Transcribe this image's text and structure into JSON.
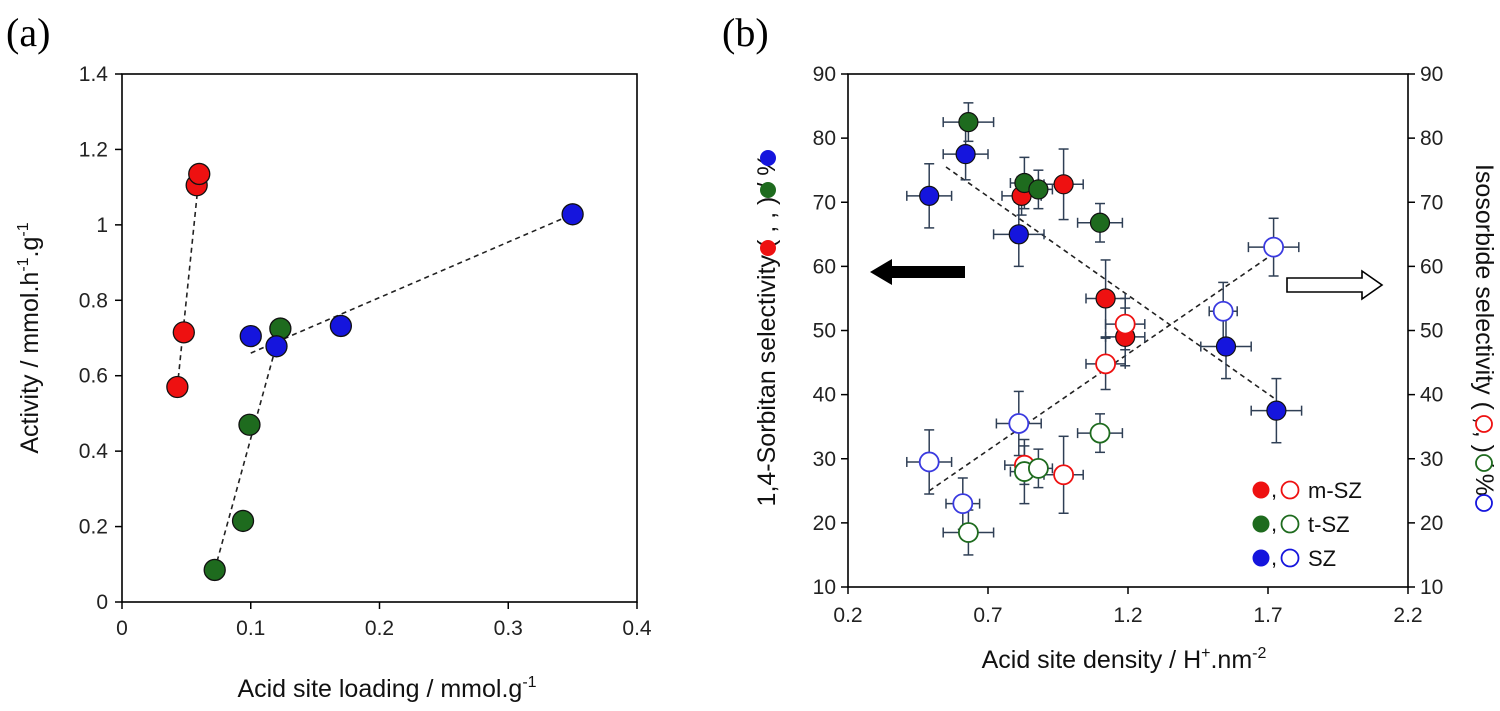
{
  "colors": {
    "m_SZ": "#ee1111",
    "t_SZ": "#1e6b1e",
    "SZ": "#1515dd",
    "SZ_open": "#3a3ae0",
    "error_bar": "#2f3f55",
    "axis": "#000000"
  },
  "chart_data": [
    {
      "panel_label": "(a)",
      "type": "scatter",
      "xlabel": "Acid site loading  / mmol.g",
      "xlabel_sup": "-1",
      "ylabel": {
        "pre": "Activity / mmol.h",
        "sup1": "-1",
        "mid": ".g",
        "sup2": "-1"
      },
      "xlim": [
        0,
        0.4
      ],
      "ylim": [
        0,
        1.4
      ],
      "xticks": [
        "0",
        "0.1",
        "0.2",
        "0.3",
        "0.4"
      ],
      "yticks": [
        "0",
        "0.2",
        "0.4",
        "0.6",
        "0.8",
        "1",
        "1.2",
        "1.4"
      ],
      "series": [
        {
          "name": "m-SZ",
          "color_key": "m_SZ",
          "points": [
            [
              0.043,
              0.57
            ],
            [
              0.048,
              0.715
            ],
            [
              0.058,
              1.105
            ],
            [
              0.06,
              1.135
            ]
          ],
          "trendline": [
            [
              0.043,
              0.57
            ],
            [
              0.06,
              1.135
            ]
          ]
        },
        {
          "name": "t-SZ",
          "color_key": "t_SZ",
          "points": [
            [
              0.072,
              0.085
            ],
            [
              0.094,
              0.215
            ],
            [
              0.099,
              0.47
            ],
            [
              0.123,
              0.725
            ]
          ],
          "trendline": [
            [
              0.072,
              0.085
            ],
            [
              0.123,
              0.72
            ]
          ]
        },
        {
          "name": "SZ",
          "color_key": "SZ",
          "points": [
            [
              0.1,
              0.705
            ],
            [
              0.12,
              0.678
            ],
            [
              0.17,
              0.732
            ],
            [
              0.35,
              1.028
            ]
          ],
          "trendline": [
            [
              0.1,
              0.66
            ],
            [
              0.35,
              1.028
            ]
          ]
        }
      ]
    },
    {
      "panel_label": "(b)",
      "type": "scatter",
      "xlabel": "Acid site density / H",
      "xlabel_sup1": "+",
      "xlabel_mid": ".nm",
      "xlabel_sup2": "-2",
      "ylabel_left": "1,4-Sorbitan selectivity (  ,  ,  ) / %",
      "ylabel_right": "Isosorbide selectivity (  ,  ,  ) / %",
      "xlim": [
        0.2,
        2.2
      ],
      "ylim": [
        10,
        90
      ],
      "xticks": [
        "0.2",
        "0.7",
        "1.2",
        "1.7",
        "2.2"
      ],
      "yticks_left": [
        "10",
        "20",
        "30",
        "40",
        "50",
        "60",
        "70",
        "80",
        "90"
      ],
      "yticks_right": [
        "10",
        "20",
        "30",
        "40",
        "50",
        "60",
        "70",
        "80",
        "90"
      ],
      "legend": [
        {
          "label": "m-SZ",
          "color_key": "m_SZ"
        },
        {
          "label": "t-SZ",
          "color_key": "t_SZ"
        },
        {
          "label": "SZ",
          "color_key": "SZ"
        }
      ],
      "series": [
        {
          "name": "m-SZ 1,4-Sorbitan",
          "axis": "left",
          "filled": true,
          "color_key": "m_SZ",
          "points": [
            [
              0.82,
              71,
              0.07,
              3
            ],
            [
              0.97,
              72.8,
              0.07,
              5.5
            ],
            [
              1.12,
              55,
              0.07,
              6
            ],
            [
              1.19,
              49,
              0.07,
              4.5
            ]
          ]
        },
        {
          "name": "t-SZ 1,4-Sorbitan",
          "axis": "left",
          "filled": true,
          "color_key": "t_SZ",
          "points": [
            [
              0.63,
              82.5,
              0.09,
              3
            ],
            [
              0.83,
              73,
              0.05,
              4
            ],
            [
              0.88,
              72,
              0.05,
              3
            ],
            [
              1.1,
              66.8,
              0.08,
              3
            ]
          ]
        },
        {
          "name": "SZ 1,4-Sorbitan",
          "axis": "left",
          "filled": true,
          "color_key": "SZ",
          "points": [
            [
              0.49,
              71,
              0.08,
              5
            ],
            [
              0.62,
              77.5,
              0.08,
              4
            ],
            [
              0.81,
              65,
              0.09,
              5
            ],
            [
              1.55,
              47.5,
              0.09,
              5
            ],
            [
              1.73,
              37.5,
              0.09,
              5
            ]
          ]
        },
        {
          "name": "m-SZ Isosorbide",
          "axis": "right",
          "filled": false,
          "color_key": "m_SZ",
          "points": [
            [
              0.83,
              29,
              0.07,
              3
            ],
            [
              0.97,
              27.5,
              0.07,
              6
            ],
            [
              1.12,
              44.8,
              0.07,
              4
            ],
            [
              1.19,
              51,
              0.07,
              4
            ]
          ]
        },
        {
          "name": "t-SZ Isosorbide",
          "axis": "right",
          "filled": false,
          "color_key": "t_SZ",
          "points": [
            [
              0.63,
              18.5,
              0.09,
              3.5
            ],
            [
              0.83,
              28,
              0.05,
              5
            ],
            [
              0.88,
              28.5,
              0.05,
              3
            ],
            [
              1.1,
              34,
              0.08,
              3
            ]
          ]
        },
        {
          "name": "SZ Isosorbide",
          "axis": "right",
          "filled": false,
          "color_key": "SZ_open",
          "points": [
            [
              0.49,
              29.5,
              0.08,
              5
            ],
            [
              0.61,
              23,
              0.06,
              4
            ],
            [
              0.81,
              35.5,
              0.08,
              5
            ],
            [
              1.54,
              53,
              0.05,
              4.5
            ],
            [
              1.72,
              63,
              0.09,
              4.5
            ]
          ]
        }
      ],
      "trendlines": [
        {
          "name": "sorbitan-trend",
          "points": [
            [
              0.55,
              75.5
            ],
            [
              1.72,
              39.5
            ]
          ]
        },
        {
          "name": "isosorbide-trend",
          "points": [
            [
              0.49,
              25
            ],
            [
              1.72,
              62
            ]
          ]
        }
      ],
      "arrows": [
        {
          "name": "left-axis-arrow",
          "direction": "left",
          "style": "filled"
        },
        {
          "name": "right-axis-arrow",
          "direction": "right",
          "style": "open"
        }
      ]
    }
  ]
}
